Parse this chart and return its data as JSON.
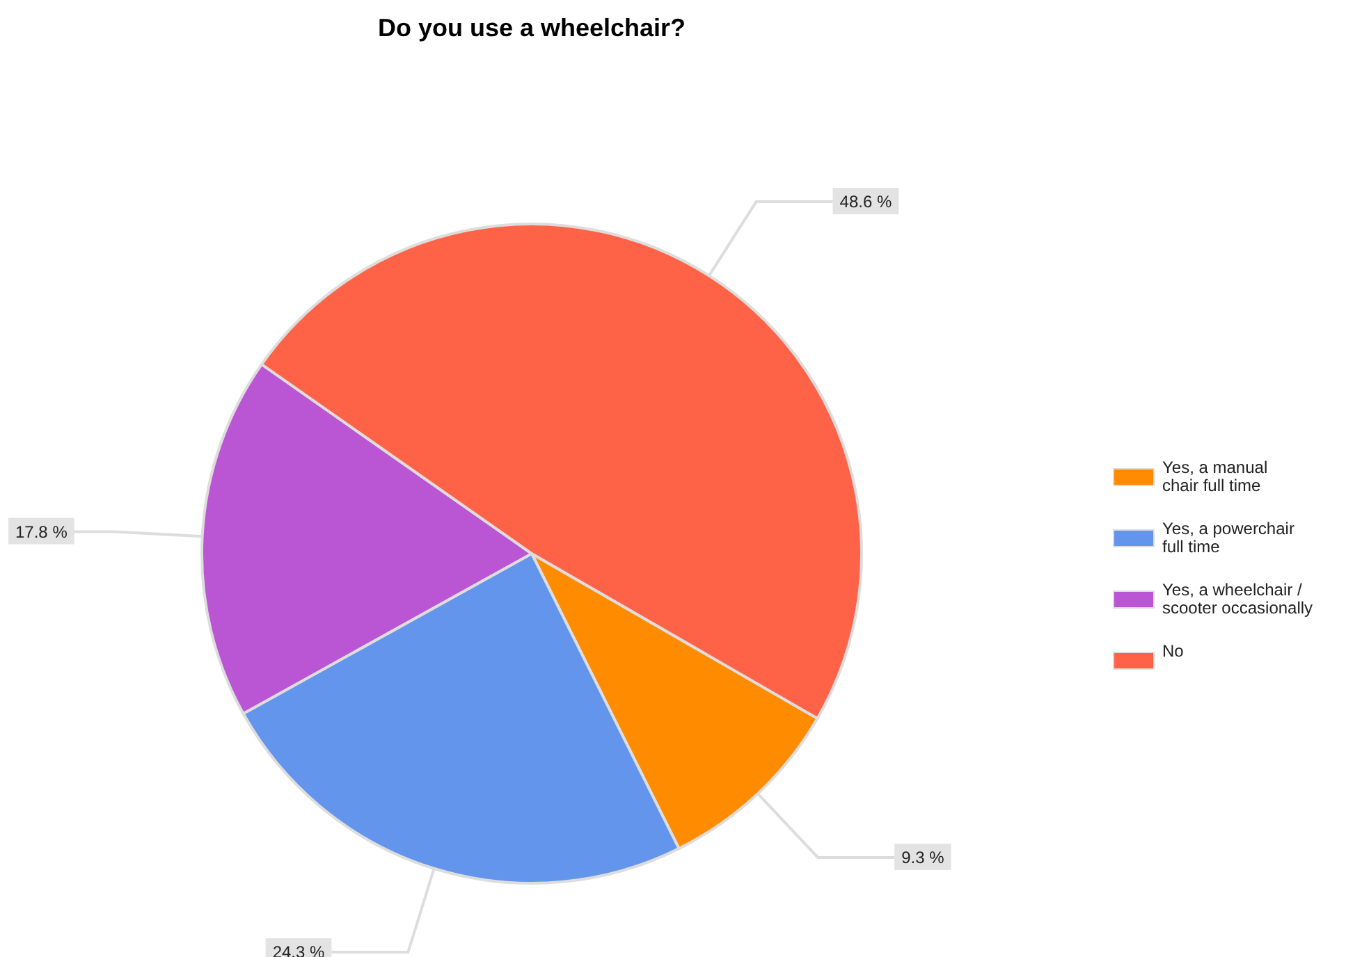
{
  "chart_data": {
    "type": "pie",
    "title": "Do you use a wheelchair?",
    "categories": [
      "Yes, a manual chair full time",
      "Yes, a powerchair full time",
      "Yes, a wheelchair / scooter occasionally",
      "No"
    ],
    "values": [
      9.3,
      24.3,
      17.8,
      48.6
    ],
    "colors": [
      "#ff8c00",
      "#6495ed",
      "#ba55d3",
      "#ff6347"
    ],
    "value_labels": [
      "9.3 %",
      "24.3 %",
      "17.8 %",
      "48.6 %"
    ],
    "legend": "right"
  }
}
